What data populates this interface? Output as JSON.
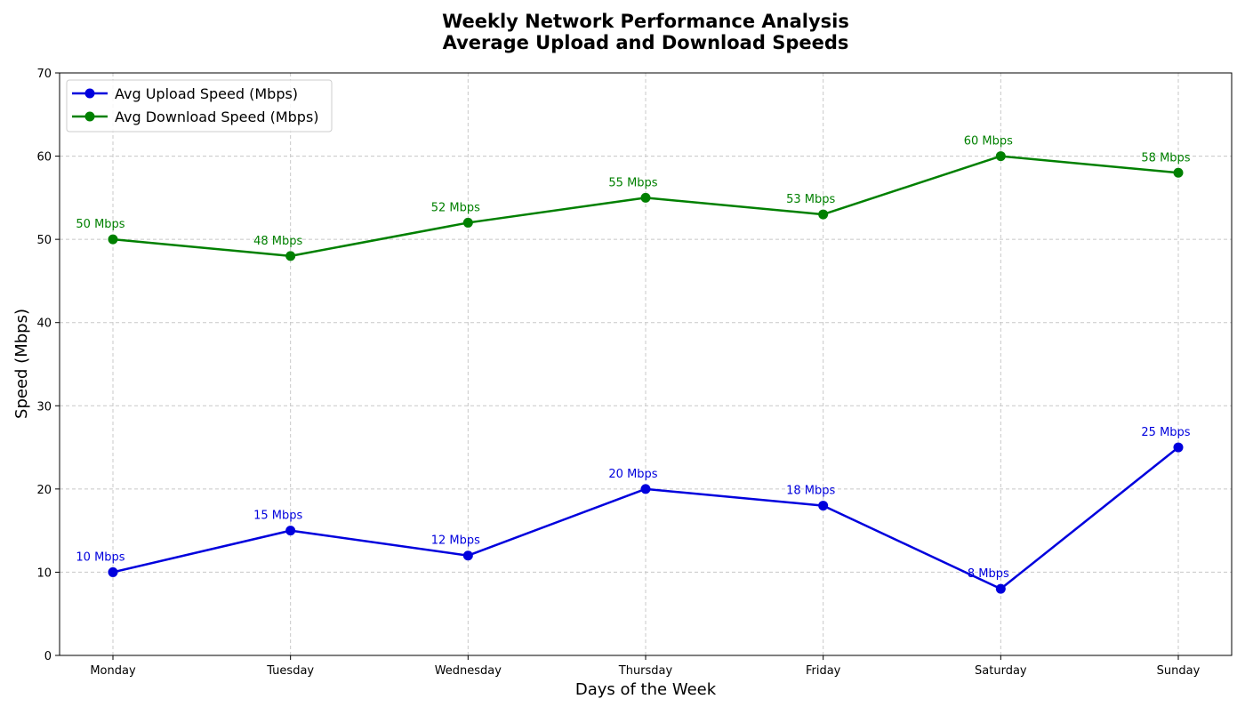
{
  "chart_data": {
    "type": "line",
    "title": "Weekly Network Performance Analysis",
    "subtitle": "Average Upload and Download Speeds",
    "xlabel": "Days of the Week",
    "ylabel": "Speed (Mbps)",
    "categories": [
      "Monday",
      "Tuesday",
      "Wednesday",
      "Thursday",
      "Friday",
      "Saturday",
      "Sunday"
    ],
    "ylim": [
      0,
      70
    ],
    "yticks": [
      0,
      10,
      20,
      30,
      40,
      50,
      60,
      70
    ],
    "grid": true,
    "legend_position": "top-left",
    "label_suffix": " Mbps",
    "series": [
      {
        "name": "Avg Upload Speed (Mbps)",
        "color": "#0000dd",
        "marker": "circle",
        "values": [
          10,
          15,
          12,
          20,
          18,
          8,
          25
        ]
      },
      {
        "name": "Avg Download Speed (Mbps)",
        "color": "#008000",
        "marker": "circle",
        "values": [
          50,
          48,
          52,
          55,
          53,
          60,
          58
        ]
      }
    ]
  }
}
